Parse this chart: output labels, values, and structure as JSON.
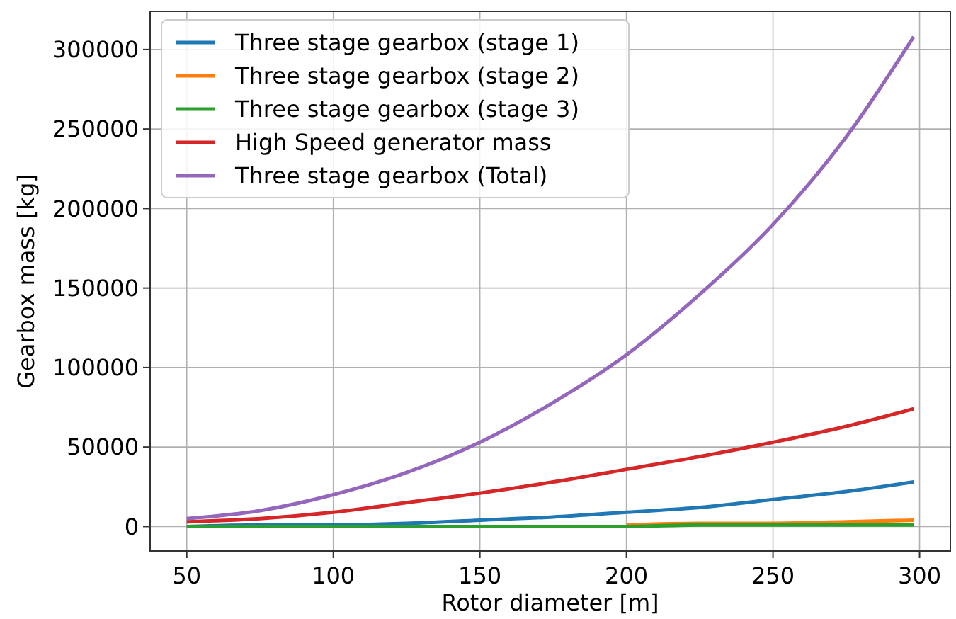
{
  "chart_data": {
    "type": "line",
    "xlabel": "Rotor diameter [m]",
    "ylabel": "Gearbox mass [kg]",
    "x": [
      50,
      75,
      100,
      125,
      150,
      175,
      200,
      225,
      250,
      275,
      298
    ],
    "series": [
      {
        "name": "Three stage gearbox (stage 1)",
        "color": "#1f77b4",
        "values": [
          0,
          1000,
          1000,
          2000,
          4000,
          6000,
          9000,
          12000,
          17000,
          22000,
          28000
        ]
      },
      {
        "name": "Three stage gearbox (stage 2)",
        "color": "#ff7f0e",
        "values": [
          null,
          null,
          null,
          null,
          null,
          null,
          1000,
          2000,
          2000,
          3000,
          4000
        ]
      },
      {
        "name": "Three stage gearbox (stage 3)",
        "color": "#2ca02c",
        "values": [
          0,
          0,
          0,
          0,
          0,
          0,
          0,
          1000,
          1000,
          1000,
          1000
        ]
      },
      {
        "name": "High Speed generator mass",
        "color": "#d62728",
        "values": [
          3000,
          5000,
          9000,
          15000,
          21000,
          28000,
          36000,
          44000,
          53000,
          63000,
          74000
        ]
      },
      {
        "name": "Three stage gearbox (Total)",
        "color": "#9467bd",
        "values": [
          5000,
          10000,
          20000,
          34000,
          53000,
          78000,
          108000,
          146000,
          190000,
          245000,
          308000
        ]
      }
    ],
    "xlim": [
      37.5,
      310.5
    ],
    "ylim": [
      -15400,
      324000
    ],
    "xticks": [
      50,
      100,
      150,
      200,
      250,
      300
    ],
    "yticks": [
      0,
      50000,
      100000,
      150000,
      200000,
      250000,
      300000
    ],
    "grid": true,
    "legend": "top left",
    "line_style": "solid",
    "marker": "none"
  }
}
